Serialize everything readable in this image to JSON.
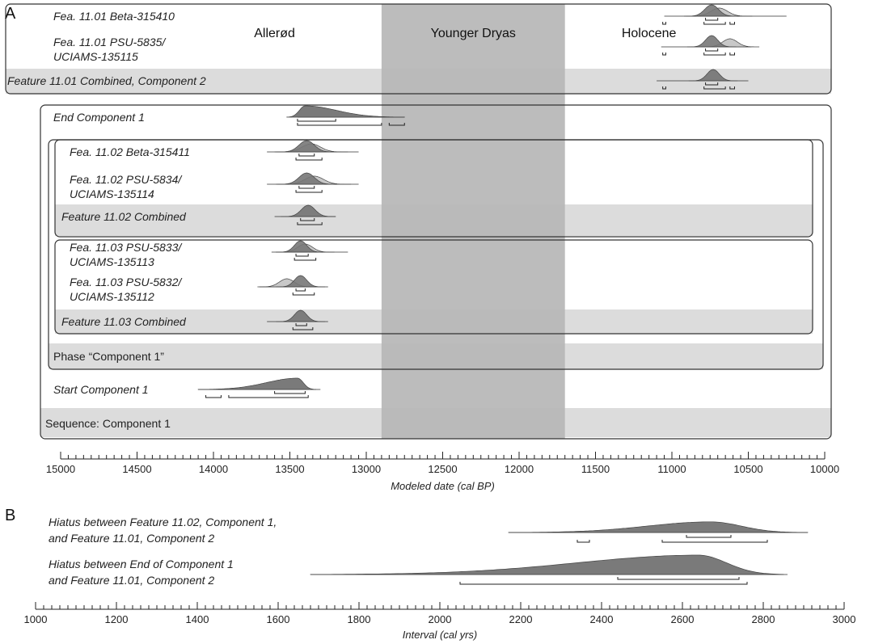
{
  "panel_a_letter": "A",
  "panel_b_letter": "B",
  "chart_data": [
    {
      "type": "area",
      "panel": "A",
      "xlabel": "Modeled date (cal BP)",
      "xlim": [
        15000,
        10000
      ],
      "x_reversed": true,
      "x_ticks": [
        15000,
        14500,
        14000,
        13500,
        13000,
        12500,
        12000,
        11500,
        11000,
        10500,
        10000
      ],
      "periods": [
        {
          "name": "Allerød",
          "range": [
            15000,
            12900
          ]
        },
        {
          "name": "Younger Dryas",
          "range": [
            12900,
            11700
          ]
        },
        {
          "name": "Holocene",
          "range": [
            11700,
            10000
          ]
        }
      ],
      "period_band_color": "#b6b6b6",
      "groups": [
        {
          "label": "Phase “Component 1”"
        },
        {
          "label": "Sequence: Component 1"
        }
      ],
      "rows": [
        {
          "label_lines": [
            "Fea. 11.01 Beta-315410"
          ],
          "type": "date",
          "peak": 10740,
          "sd": 45,
          "prior_peak": 10690,
          "range_95": [
            10250,
            11050
          ],
          "ranges_68": [
            [
              10780,
              10700
            ]
          ],
          "ranges_95": [
            [
              11060,
              11040
            ],
            [
              10790,
              10650
            ],
            [
              10620,
              10590
            ]
          ]
        },
        {
          "label_lines": [
            "Fea. 11.01 PSU-5835/",
            "UCIAMS-135115"
          ],
          "type": "date",
          "peak": 10740,
          "sd": 40,
          "prior_peak": 10620,
          "range_95": [
            10480,
            11070
          ],
          "ranges_68": [
            [
              10780,
              10700
            ]
          ],
          "ranges_95": [
            [
              11060,
              11040
            ],
            [
              10790,
              10650
            ],
            [
              10620,
              10590
            ]
          ]
        },
        {
          "label_lines": [
            "Feature 11.01 Combined, Component 2"
          ],
          "type": "combined",
          "peak": 10730,
          "sd": 40,
          "range_95": [
            10500,
            11100
          ],
          "ranges_68": [
            [
              10780,
              10700
            ]
          ],
          "ranges_95": [
            [
              11060,
              11040
            ],
            [
              10790,
              10650
            ],
            [
              10620,
              10590
            ]
          ]
        },
        {
          "label_lines": [
            "End Component 1"
          ],
          "type": "boundary",
          "peak": 13400,
          "range_95": [
            12750,
            13450
          ],
          "ranges_68": [
            [
              13450,
              13200
            ]
          ],
          "ranges_95": [
            [
              13450,
              12900
            ],
            [
              12850,
              12750
            ]
          ]
        },
        {
          "label_lines": [
            "Fea. 11.02 Beta-315411"
          ],
          "type": "date",
          "peak": 13390,
          "sd": 50,
          "prior_peak": 13360,
          "range_95": [
            13050,
            13650
          ],
          "ranges_68": [
            [
              13440,
              13340
            ]
          ],
          "ranges_95": [
            [
              13460,
              13290
            ]
          ]
        },
        {
          "label_lines": [
            "Fea. 11.02 PSU-5834/",
            "UCIAMS-135114"
          ],
          "type": "date",
          "peak": 13390,
          "sd": 50,
          "prior_peak": 13340,
          "range_95": [
            13050,
            13650
          ],
          "ranges_68": [
            [
              13440,
              13340
            ]
          ],
          "ranges_95": [
            [
              13460,
              13290
            ]
          ]
        },
        {
          "label_lines": [
            "Feature 11.02 Combined"
          ],
          "type": "combined",
          "peak": 13380,
          "sd": 45,
          "range_95": [
            13200,
            13600
          ],
          "ranges_68": [
            [
              13430,
              13340
            ]
          ],
          "ranges_95": [
            [
              13450,
              13290
            ]
          ]
        },
        {
          "label_lines": [
            "Fea. 11.03 PSU-5833/",
            "UCIAMS-135113"
          ],
          "type": "date",
          "peak": 13430,
          "sd": 40,
          "prior_peak": 13400,
          "range_95": [
            13120,
            13620
          ],
          "ranges_68": [
            [
              13460,
              13380
            ]
          ],
          "ranges_95": [
            [
              13470,
              13330
            ]
          ]
        },
        {
          "label_lines": [
            "Fea. 11.03 PSU-5832/",
            "UCIAMS-135112"
          ],
          "type": "date",
          "peak": 13430,
          "sd": 40,
          "prior_peak": 13520,
          "range_95": [
            13250,
            13700
          ],
          "ranges_68": [
            [
              13460,
              13400
            ]
          ],
          "ranges_95": [
            [
              13480,
              13340
            ]
          ]
        },
        {
          "label_lines": [
            "Feature 11.03 Combined"
          ],
          "type": "combined",
          "peak": 13430,
          "sd": 40,
          "range_95": [
            13250,
            13650
          ],
          "ranges_68": [
            [
              13460,
              13390
            ]
          ],
          "ranges_95": [
            [
              13480,
              13350
            ]
          ]
        },
        {
          "label_lines": [
            "Start Component 1"
          ],
          "type": "boundary_start",
          "peak": 13450,
          "range_95": [
            13300,
            14100
          ],
          "ranges_68": [
            [
              13600,
              13400
            ]
          ],
          "ranges_95": [
            [
              14050,
              13950
            ],
            [
              13900,
              13380
            ]
          ]
        }
      ]
    },
    {
      "type": "area",
      "panel": "B",
      "xlabel": "Interval (cal yrs)",
      "xlim": [
        1000,
        3000
      ],
      "x_ticks": [
        1000,
        1200,
        1400,
        1600,
        1800,
        2000,
        2200,
        2400,
        2600,
        2800,
        3000
      ],
      "rows": [
        {
          "label_lines": [
            "Hiatus between Feature 11.02, Component 1,",
            "and Feature 11.01, Component 2"
          ],
          "peak": 2670,
          "range_95": [
            2170,
            2910
          ],
          "ranges_68": [
            [
              2610,
              2720
            ]
          ],
          "ranges_95": [
            [
              2340,
              2370
            ],
            [
              2550,
              2810
            ]
          ]
        },
        {
          "label_lines": [
            "Hiatus between End of Component 1",
            "and Feature 11.01, Component 2"
          ],
          "peak": 2640,
          "range_95": [
            1680,
            2860
          ],
          "ranges_68": [
            [
              2440,
              2740
            ]
          ],
          "ranges_95": [
            [
              2050,
              2760
            ]
          ]
        }
      ]
    }
  ]
}
